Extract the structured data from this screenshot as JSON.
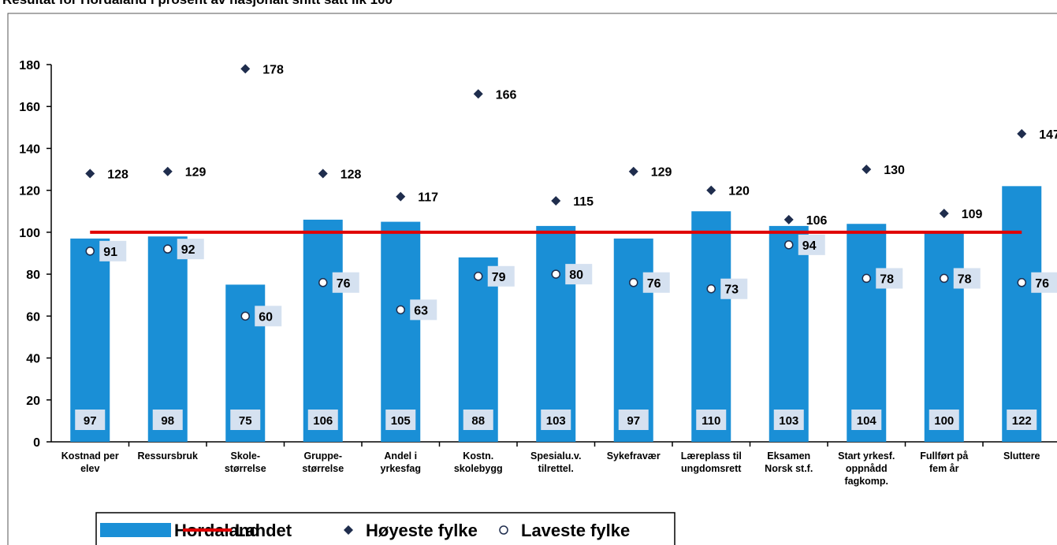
{
  "chart_data": {
    "type": "bar",
    "title": "Resultat for Hordaland i prosent av nasjonalt snitt satt lik 100",
    "categories": [
      "Kostnad per\nelev",
      "Ressursbruk",
      "Skole-\nstørrelse",
      "Gruppe-\nstørrelse",
      "Andel i\nyrkesfag",
      "Kostn.\nskolebygg",
      "Spesialu.v.\ntilrettel.",
      "Sykefravær",
      "Læreplass til\nungdomsrett",
      "Eksamen\nNorsk st.f.",
      "Start yrkesf.\noppnådd\nfagkomp.",
      "Fullført på\nfem år",
      "Sluttere"
    ],
    "series": [
      {
        "name": "Hordaland",
        "type": "bar",
        "color": "#1a8fd6",
        "values": [
          97,
          98,
          75,
          106,
          105,
          88,
          103,
          97,
          110,
          103,
          104,
          100,
          122
        ]
      },
      {
        "name": "Landet",
        "type": "line",
        "color": "#e00000",
        "values": [
          100,
          100,
          100,
          100,
          100,
          100,
          100,
          100,
          100,
          100,
          100,
          100,
          100
        ]
      },
      {
        "name": "Høyeste fylke",
        "type": "scatter",
        "marker": "diamond",
        "color": "#1f2d4d",
        "values": [
          128,
          129,
          178,
          128,
          117,
          166,
          115,
          129,
          120,
          106,
          130,
          109,
          147
        ]
      },
      {
        "name": "Laveste fylke",
        "type": "scatter",
        "marker": "circle",
        "color": "#ffffff",
        "values": [
          91,
          92,
          60,
          76,
          63,
          79,
          80,
          76,
          73,
          94,
          78,
          78,
          76
        ]
      }
    ],
    "ylim": [
      0,
      180
    ],
    "yticks": [
      0,
      20,
      40,
      60,
      80,
      100,
      120,
      140,
      160,
      180
    ],
    "grid": false,
    "legend": "bottom"
  }
}
